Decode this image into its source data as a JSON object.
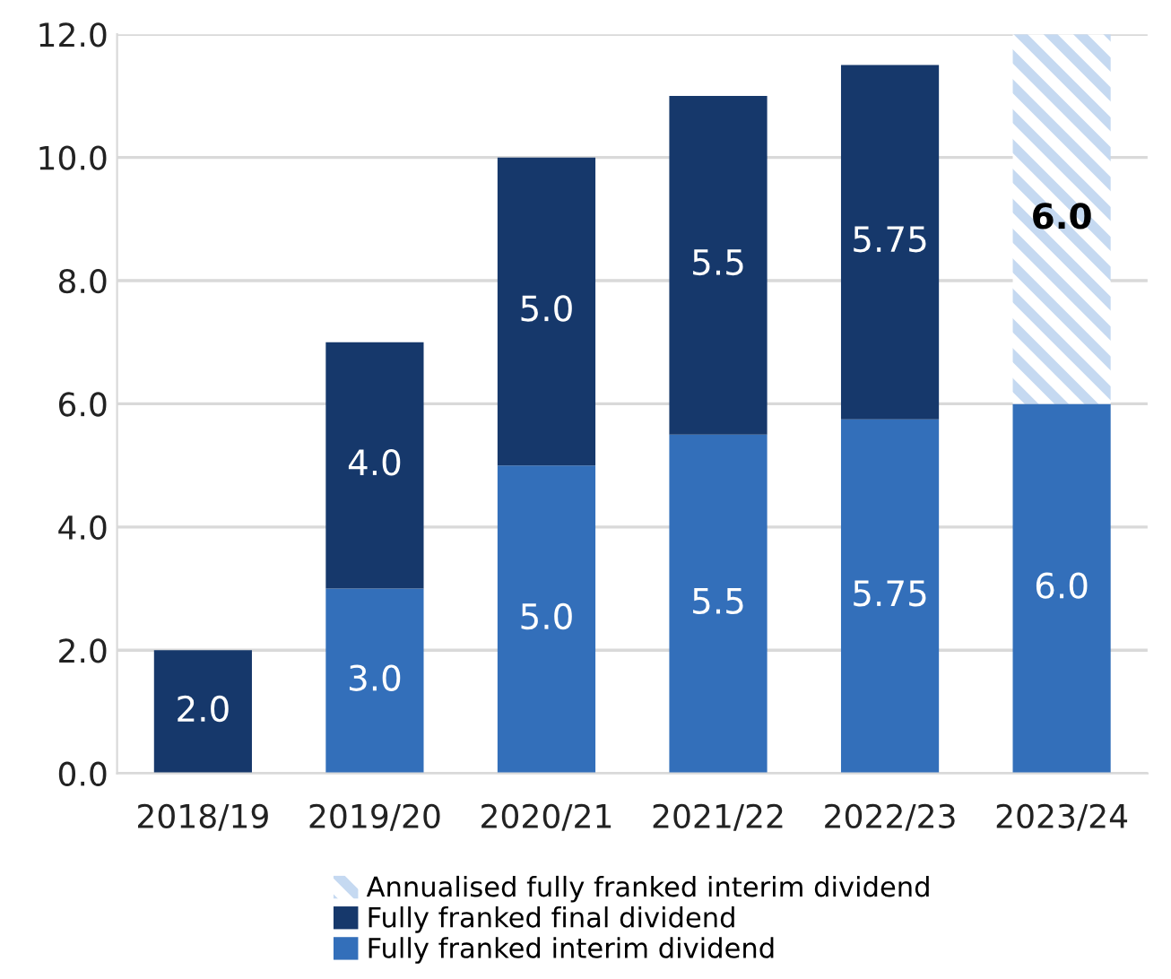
{
  "chart_data": {
    "type": "bar",
    "stacked": true,
    "categories": [
      "2018/19",
      "2019/20",
      "2020/21",
      "2021/22",
      "2022/23",
      "2023/24"
    ],
    "series": [
      {
        "name": "Fully franked interim dividend",
        "color": "#336fba",
        "values": [
          null,
          3.0,
          5.0,
          5.5,
          5.75,
          6.0
        ],
        "value_labels": [
          null,
          "3.0",
          "5.0",
          "5.5",
          "5.75",
          "6.0"
        ]
      },
      {
        "name": "Fully franked final dividend",
        "color": "#16386b",
        "values": [
          2.0,
          4.0,
          5.0,
          5.5,
          5.75,
          null
        ],
        "value_labels": [
          "2.0",
          "4.0",
          "5.0",
          "5.5",
          "5.75",
          null
        ]
      },
      {
        "name": "Annualised fully franked interim dividend",
        "color": "#c5d9f1",
        "values": [
          null,
          null,
          null,
          null,
          null,
          6.0
        ],
        "value_labels": [
          null,
          null,
          null,
          null,
          null,
          "6.0"
        ]
      }
    ],
    "ylim": [
      0,
      12
    ],
    "yticks": [
      {
        "value": 0,
        "label": "0.0"
      },
      {
        "value": 2,
        "label": "2.0"
      },
      {
        "value": 4,
        "label": "4.0"
      },
      {
        "value": 6,
        "label": "6.0"
      },
      {
        "value": 8,
        "label": "8.0"
      },
      {
        "value": 10,
        "label": "10.0"
      },
      {
        "value": 12,
        "label": "12.0"
      }
    ],
    "grid": "y",
    "legend": "bottom"
  }
}
